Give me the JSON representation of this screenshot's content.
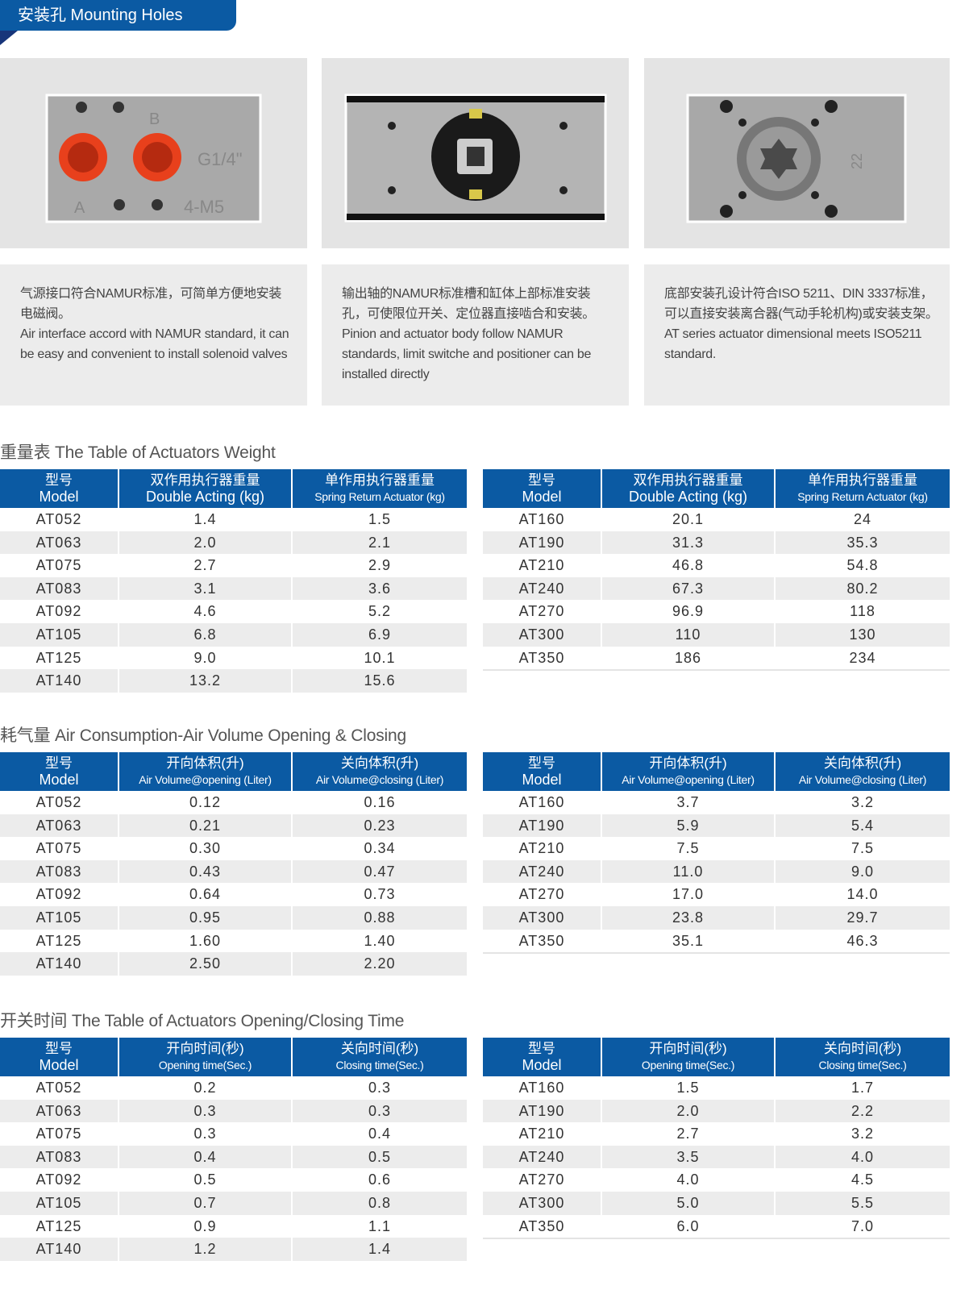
{
  "banner": {
    "title": "安装孔 Mounting Holes"
  },
  "photos": [
    {
      "labels": [
        "B",
        "G1/4\"",
        "A",
        "4-M5"
      ]
    },
    {
      "labels": []
    },
    {
      "labels": [
        "22"
      ]
    }
  ],
  "captions": [
    {
      "zh": "气源接口符合NAMUR标准，可简单方便地安装电磁阀。",
      "en": "Air interface accord with NAMUR standard, it can be easy and convenient to install solenoid valves"
    },
    {
      "zh": "输出轴的NAMUR标准槽和缸体上部标准安装孔，可使限位开关、定位器直接啮合和安装。",
      "en": "Pinion and actuator body follow NAMUR standards, limit switche and positioner can be installed directly"
    },
    {
      "zh": "底部安装孔设计符合ISO 5211、DIN 3337标准，可以直接安装离合器(气动手轮机构)或安装支架。",
      "en": "AT series actuator dimensional meets ISO5211 standard."
    }
  ],
  "sections": [
    {
      "title": "重量表 The Table of Actuators Weight",
      "headers": [
        {
          "zh": "型号",
          "en": "Model"
        },
        {
          "zh": "双作用执行器重量",
          "en": "Double Acting (kg)"
        },
        {
          "zh": "单作用执行器重量",
          "en": "Spring Return Actuator (kg)"
        }
      ],
      "left_rows": [
        [
          "AT052",
          "1.4",
          "1.5"
        ],
        [
          "AT063",
          "2.0",
          "2.1"
        ],
        [
          "AT075",
          "2.7",
          "2.9"
        ],
        [
          "AT083",
          "3.1",
          "3.6"
        ],
        [
          "AT092",
          "4.6",
          "5.2"
        ],
        [
          "AT105",
          "6.8",
          "6.9"
        ],
        [
          "AT125",
          "9.0",
          "10.1"
        ],
        [
          "AT140",
          "13.2",
          "15.6"
        ]
      ],
      "right_rows": [
        [
          "AT160",
          "20.1",
          "24"
        ],
        [
          "AT190",
          "31.3",
          "35.3"
        ],
        [
          "AT210",
          "46.8",
          "54.8"
        ],
        [
          "AT240",
          "67.3",
          "80.2"
        ],
        [
          "AT270",
          "96.9",
          "118"
        ],
        [
          "AT300",
          "110",
          "130"
        ],
        [
          "AT350",
          "186",
          "234"
        ]
      ]
    },
    {
      "title": "耗气量 Air Consumption-Air Volume Opening & Closing",
      "headers": [
        {
          "zh": "型号",
          "en": "Model"
        },
        {
          "zh": "开向体积(升)",
          "en": "Air Volume@opening (Liter)"
        },
        {
          "zh": "关向体积(升)",
          "en": "Air Volume@closing (Liter)"
        }
      ],
      "left_rows": [
        [
          "AT052",
          "0.12",
          "0.16"
        ],
        [
          "AT063",
          "0.21",
          "0.23"
        ],
        [
          "AT075",
          "0.30",
          "0.34"
        ],
        [
          "AT083",
          "0.43",
          "0.47"
        ],
        [
          "AT092",
          "0.64",
          "0.73"
        ],
        [
          "AT105",
          "0.95",
          "0.88"
        ],
        [
          "AT125",
          "1.60",
          "1.40"
        ],
        [
          "AT140",
          "2.50",
          "2.20"
        ]
      ],
      "right_rows": [
        [
          "AT160",
          "3.7",
          "3.2"
        ],
        [
          "AT190",
          "5.9",
          "5.4"
        ],
        [
          "AT210",
          "7.5",
          "7.5"
        ],
        [
          "AT240",
          "11.0",
          "9.0"
        ],
        [
          "AT270",
          "17.0",
          "14.0"
        ],
        [
          "AT300",
          "23.8",
          "29.7"
        ],
        [
          "AT350",
          "35.1",
          "46.3"
        ]
      ]
    },
    {
      "title": "开关时间 The Table of Actuators Opening/Closing Time",
      "headers": [
        {
          "zh": "型号",
          "en": "Model"
        },
        {
          "zh": "开向时间(秒)",
          "en": "Opening time(Sec.)"
        },
        {
          "zh": "关向时间(秒)",
          "en": "Closing time(Sec.)"
        }
      ],
      "left_rows": [
        [
          "AT052",
          "0.2",
          "0.3"
        ],
        [
          "AT063",
          "0.3",
          "0.3"
        ],
        [
          "AT075",
          "0.3",
          "0.4"
        ],
        [
          "AT083",
          "0.4",
          "0.5"
        ],
        [
          "AT092",
          "0.5",
          "0.6"
        ],
        [
          "AT105",
          "0.7",
          "0.8"
        ],
        [
          "AT125",
          "0.9",
          "1.1"
        ],
        [
          "AT140",
          "1.2",
          "1.4"
        ]
      ],
      "right_rows": [
        [
          "AT160",
          "1.5",
          "1.7"
        ],
        [
          "AT190",
          "2.0",
          "2.2"
        ],
        [
          "AT210",
          "2.7",
          "3.2"
        ],
        [
          "AT240",
          "3.5",
          "4.0"
        ],
        [
          "AT270",
          "4.0",
          "4.5"
        ],
        [
          "AT300",
          "5.0",
          "5.5"
        ],
        [
          "AT350",
          "6.0",
          "7.0"
        ]
      ]
    }
  ],
  "colors": {
    "header_blue": "#0b5aa3",
    "row_alt": "#ececec",
    "port_red": "#e8401c"
  }
}
